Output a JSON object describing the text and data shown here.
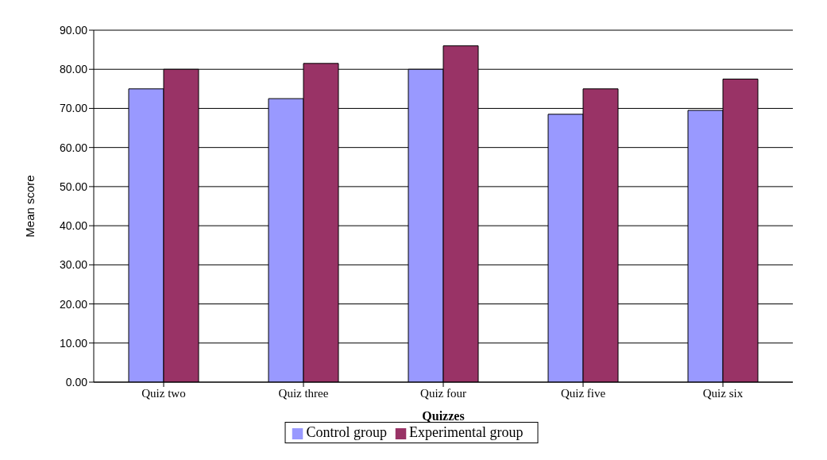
{
  "chart_data": {
    "type": "bar",
    "xlabel": "Quizzes",
    "ylabel": "Mean score",
    "categories": [
      "Quiz two",
      "Quiz three",
      "Quiz four",
      "Quiz five",
      "Quiz six"
    ],
    "series": [
      {
        "name": "Control group",
        "color": "#9999ff",
        "values": [
          75,
          72.5,
          80,
          68.5,
          69.5
        ]
      },
      {
        "name": "Experimental group",
        "color": "#993366",
        "values": [
          80,
          81.5,
          86,
          75,
          77.5
        ]
      }
    ],
    "ylim": [
      0,
      90
    ],
    "yticks": [
      {
        "value": 0,
        "label": "0.00"
      },
      {
        "value": 10,
        "label": "10.00"
      },
      {
        "value": 20,
        "label": "20.00"
      },
      {
        "value": 30,
        "label": "30.00"
      },
      {
        "value": 40,
        "label": "40.00"
      },
      {
        "value": 50,
        "label": "50.00"
      },
      {
        "value": 60,
        "label": "60.00"
      },
      {
        "value": 70,
        "label": "70.00"
      },
      {
        "value": 80,
        "label": "80.00"
      },
      {
        "value": 90,
        "label": "90.00"
      }
    ],
    "grid": "y",
    "legend": "bottom"
  }
}
